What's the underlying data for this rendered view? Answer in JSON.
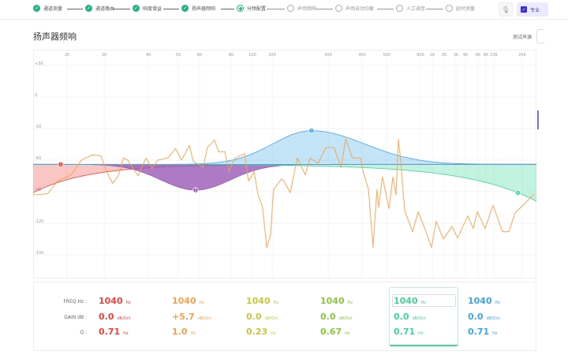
{
  "stepper": {
    "steps": [
      {
        "label": "通道测量",
        "state": "done"
      },
      {
        "label": "通道路由",
        "state": "done"
      },
      {
        "label": "响度增益",
        "state": "done"
      },
      {
        "label": "扬声器频响",
        "state": "done"
      },
      {
        "label": "分频配置",
        "state": "current"
      },
      {
        "label": "声场频响",
        "state": "todo"
      },
      {
        "label": "声场自动均衡",
        "state": "todo"
      },
      {
        "label": "人工调音",
        "state": "todo"
      },
      {
        "label": "延时测量",
        "state": "todo"
      }
    ],
    "mic_icon": "microphone-icon",
    "checkbox_label": "专业",
    "checkbox_checked": true
  },
  "header": {
    "title": "扬声器频响",
    "test_source_label": "测试声源"
  },
  "colors": {
    "accent": "#22b77a",
    "red": "#f0413c",
    "orange": "#f7a04a",
    "yellow": "#c5c93a",
    "green": "#8cc63f",
    "teal": "#3dd598",
    "blue": "#3aa6e8",
    "purple": "#9b59b6"
  },
  "chart_data": {
    "type": "line",
    "x_scale": "log",
    "x_ticks": [
      "20",
      "30",
      "40",
      "50",
      "60",
      "80",
      "100",
      "200",
      "300",
      "400",
      "500",
      "800",
      "1K",
      "2K",
      "3K",
      "4K",
      "6K",
      "8K",
      "10K",
      "20K"
    ],
    "x_tick_values": [
      20,
      30,
      40,
      50,
      60,
      80,
      100,
      200,
      300,
      400,
      500,
      800,
      1000,
      2000,
      3000,
      4000,
      6000,
      8000,
      10000,
      20000
    ],
    "y_ticks": [
      "+30",
      "0",
      "-30",
      "-60",
      "-90",
      "-120",
      "-150"
    ],
    "y_tick_values": [
      30,
      0,
      -30,
      -60,
      -90,
      -120,
      -150
    ],
    "grid": true,
    "baseline_db": -64,
    "bands": [
      {
        "id": "1",
        "type": "low-shelf",
        "freq": 18.7,
        "gain": -64,
        "edge_gain": -91,
        "color": "#f0413c"
      },
      {
        "id": "2",
        "type": "peak",
        "freq": 58,
        "gain": -88.5,
        "color": "#9b59b6"
      },
      {
        "id": "3",
        "type": "peak",
        "freq": 266,
        "gain": -32,
        "color": "#3aa6e8"
      },
      {
        "id": "4",
        "type": "high-shelf",
        "freq": 18000,
        "gain": -91,
        "color": "#3dd598"
      }
    ],
    "response": {
      "color": "#f7a04a",
      "points": [
        [
          14,
          -93
        ],
        [
          16.3,
          -92
        ],
        [
          18.1,
          -80
        ],
        [
          20.9,
          -74
        ],
        [
          23.4,
          -60
        ],
        [
          26.4,
          -55
        ],
        [
          29,
          -56
        ],
        [
          30.5,
          -71
        ],
        [
          31.7,
          -82
        ],
        [
          32.9,
          -75
        ],
        [
          34,
          -58
        ],
        [
          35,
          -60
        ],
        [
          37.4,
          -75
        ],
        [
          39.4,
          -58
        ],
        [
          41.2,
          -68
        ],
        [
          42.9,
          -60
        ],
        [
          46.3,
          -58
        ],
        [
          49,
          -49
        ],
        [
          51.4,
          -60
        ],
        [
          55,
          -46
        ],
        [
          56.8,
          -61
        ],
        [
          62,
          -67
        ],
        [
          64.4,
          -48
        ],
        [
          68.8,
          -41
        ],
        [
          71.3,
          -52
        ],
        [
          75.5,
          -52
        ],
        [
          78.4,
          -71
        ],
        [
          83.4,
          -58
        ],
        [
          92,
          -54
        ],
        [
          96,
          -80
        ],
        [
          106,
          -71
        ],
        [
          121,
          -92
        ],
        [
          143,
          -105
        ],
        [
          165,
          -143
        ],
        [
          189,
          -131
        ],
        [
          202,
          -88
        ],
        [
          214,
          -78
        ],
        [
          218,
          -80
        ],
        [
          228,
          -91
        ],
        [
          240,
          -58
        ],
        [
          254,
          -74
        ],
        [
          263,
          -58
        ],
        [
          279,
          -63
        ],
        [
          295,
          -48
        ],
        [
          315,
          -48
        ],
        [
          335,
          -67
        ],
        [
          348,
          -40
        ],
        [
          369,
          -58
        ],
        [
          395,
          -58
        ],
        [
          403,
          -70
        ],
        [
          424,
          -88
        ],
        [
          442,
          -143
        ],
        [
          458,
          -88
        ],
        [
          465,
          -105
        ],
        [
          482,
          -76
        ],
        [
          517,
          -106
        ],
        [
          546,
          -76
        ],
        [
          570,
          -93
        ],
        [
          589,
          -40
        ],
        [
          608,
          -60
        ],
        [
          643,
          -108
        ],
        [
          717,
          -128
        ],
        [
          775,
          -109
        ],
        [
          888,
          -128
        ],
        [
          985,
          -143
        ],
        [
          1259,
          -118
        ],
        [
          1905,
          -135
        ],
        [
          2620,
          -123
        ],
        [
          3150,
          -134
        ],
        [
          4320,
          -113
        ],
        [
          5150,
          -125
        ],
        [
          5850,
          -109
        ],
        [
          7750,
          -125
        ],
        [
          9780,
          -103
        ],
        [
          12360,
          -128
        ],
        [
          14420,
          -128
        ],
        [
          16820,
          -110
        ],
        [
          21300,
          -100
        ],
        [
          24100,
          -92
        ]
      ]
    }
  },
  "table": {
    "row_labels": [
      "FREQ.Hz :",
      "GAIN dB :",
      "Q :"
    ],
    "columns": [
      {
        "color": "#f0413c",
        "freq": "1040",
        "freq_unit": "Hz",
        "gain": "0.0",
        "gain_unit": "dB/Oct",
        "q": "0.71",
        "q_unit": "Hz"
      },
      {
        "color": "#f7a04a",
        "freq": "1040",
        "freq_unit": "Hz",
        "gain": "+5.7",
        "gain_unit": "dB/Oct",
        "q": "1.0",
        "q_unit": "Hz"
      },
      {
        "color": "#c5c93a",
        "freq": "1040",
        "freq_unit": "Hz",
        "gain": "0.0",
        "gain_unit": "dB/Oct",
        "q": "0.23",
        "q_unit": "Hz"
      },
      {
        "color": "#8cc63f",
        "freq": "1040",
        "freq_unit": "Hz",
        "gain": "0.0",
        "gain_unit": "dB/Oct",
        "q": "0.67",
        "q_unit": "Hz"
      },
      {
        "color": "#3dd598",
        "freq": "1040",
        "freq_unit": "Hz",
        "gain": "0.0",
        "gain_unit": "dB/Oct",
        "q": "0.71",
        "q_unit": "Hz",
        "selected": true
      },
      {
        "color": "#3aa6e8",
        "freq": "1040",
        "freq_unit": "Hz",
        "gain": "0.0",
        "gain_unit": "dB/Oct",
        "q": "0.71",
        "q_unit": "Hz"
      }
    ]
  }
}
